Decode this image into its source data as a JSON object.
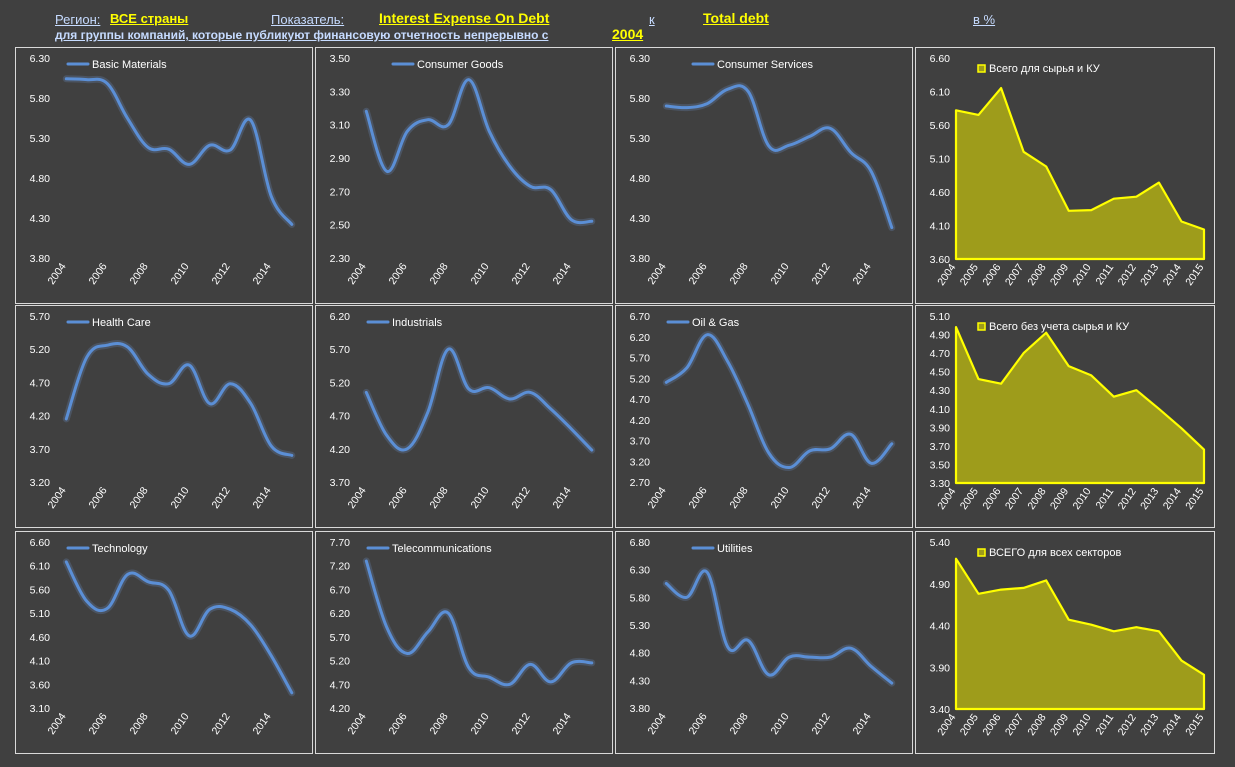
{
  "header": {
    "region_label": "Регион:",
    "region_value": "ВСЕ страны",
    "indicator_label": "Показатель:",
    "indicator_value": "Interest Expense On Debt",
    "to_label": "к",
    "denominator_value": "Total debt",
    "unit_label": "в %",
    "subtitle": "для группы компаний, которые публикуют финансовую отчетность непрерывно с",
    "start_year": "2004"
  },
  "colors": {
    "background": "#404040",
    "sector_line": "#5b8fd6",
    "total_line": "#ffff00",
    "total_fill": "#9e9c1b",
    "panel_border": "#d9d9d9",
    "axis_text": "#ffffff"
  },
  "chart_data": [
    {
      "type": "line",
      "series": [
        {
          "name": "Basic Materials",
          "values": [
            6.04,
            6.03,
            5.98,
            5.54,
            5.18,
            5.16,
            4.97,
            5.21,
            5.15,
            5.52,
            4.57,
            4.22
          ]
        }
      ],
      "x": [
        2004,
        2005,
        2006,
        2007,
        2008,
        2009,
        2010,
        2011,
        2012,
        2013,
        2014,
        2015
      ],
      "x_ticks": [
        "2004",
        "2006",
        "2008",
        "2010",
        "2012",
        "2014"
      ],
      "y_ticks": [
        "6.30",
        "5.80",
        "5.30",
        "4.80",
        "4.30",
        "3.80"
      ],
      "ylim": [
        3.8,
        6.3
      ],
      "legend": "top-left"
    },
    {
      "type": "line",
      "series": [
        {
          "name": "Consumer Goods",
          "values": [
            3.18,
            2.82,
            3.06,
            3.13,
            3.1,
            3.37,
            3.06,
            2.85,
            2.73,
            2.71,
            2.53,
            2.52
          ]
        }
      ],
      "x": [
        2004,
        2005,
        2006,
        2007,
        2008,
        2009,
        2010,
        2011,
        2012,
        2013,
        2014,
        2015
      ],
      "x_ticks": [
        "2004",
        "2006",
        "2008",
        "2010",
        "2012",
        "2014"
      ],
      "y_ticks": [
        "3.50",
        "3.30",
        "3.10",
        "2.90",
        "2.70",
        "2.50",
        "2.30"
      ],
      "ylim": [
        2.3,
        3.5
      ],
      "legend": "top-center"
    },
    {
      "type": "line",
      "series": [
        {
          "name": "Consumer Services",
          "values": [
            5.7,
            5.68,
            5.73,
            5.91,
            5.88,
            5.2,
            5.21,
            5.32,
            5.42,
            5.12,
            4.88,
            4.18
          ]
        }
      ],
      "x": [
        2004,
        2005,
        2006,
        2007,
        2008,
        2009,
        2010,
        2011,
        2012,
        2013,
        2014,
        2015
      ],
      "x_ticks": [
        "2004",
        "2006",
        "2008",
        "2010",
        "2012",
        "2014"
      ],
      "y_ticks": [
        "6.30",
        "5.80",
        "5.30",
        "4.80",
        "4.30",
        "3.80"
      ],
      "ylim": [
        3.8,
        6.3
      ],
      "legend": "top-center"
    },
    {
      "type": "area",
      "series": [
        {
          "name": "Всего для сырья и КУ",
          "values": [
            5.82,
            5.75,
            6.15,
            5.2,
            4.98,
            4.32,
            4.33,
            4.5,
            4.53,
            4.74,
            4.16,
            4.04
          ]
        }
      ],
      "x_ticks": [
        "2004",
        "2005",
        "2006",
        "2007",
        "2008",
        "2009",
        "2010",
        "2011",
        "2012",
        "2013",
        "2014",
        "2015"
      ],
      "y_ticks": [
        "6.60",
        "6.10",
        "5.60",
        "5.10",
        "4.60",
        "4.10",
        "3.60"
      ],
      "ylim": [
        3.6,
        6.6
      ],
      "legend": "top-left"
    },
    {
      "type": "line",
      "series": [
        {
          "name": "Health Care",
          "values": [
            4.15,
            5.08,
            5.26,
            5.23,
            4.82,
            4.68,
            4.96,
            4.38,
            4.68,
            4.38,
            3.74,
            3.6
          ]
        }
      ],
      "x": [
        2004,
        2005,
        2006,
        2007,
        2008,
        2009,
        2010,
        2011,
        2012,
        2013,
        2014,
        2015
      ],
      "x_ticks": [
        "2004",
        "2006",
        "2008",
        "2010",
        "2012",
        "2014"
      ],
      "y_ticks": [
        "5.70",
        "5.20",
        "4.70",
        "4.20",
        "3.70",
        "3.20"
      ],
      "ylim": [
        3.2,
        5.7
      ],
      "legend": "top-left"
    },
    {
      "type": "line",
      "series": [
        {
          "name": "Industrials",
          "values": [
            5.05,
            4.4,
            4.2,
            4.75,
            5.7,
            5.1,
            5.12,
            4.95,
            5.05,
            4.8,
            4.5,
            4.18
          ]
        }
      ],
      "x": [
        2004,
        2005,
        2006,
        2007,
        2008,
        2009,
        2010,
        2011,
        2012,
        2013,
        2014,
        2015
      ],
      "x_ticks": [
        "2004",
        "2006",
        "2008",
        "2010",
        "2012",
        "2014"
      ],
      "y_ticks": [
        "6.20",
        "5.70",
        "5.20",
        "4.70",
        "4.20",
        "3.70"
      ],
      "ylim": [
        3.7,
        6.2
      ],
      "legend": "top-left"
    },
    {
      "type": "line",
      "series": [
        {
          "name": "Oil & Gas",
          "values": [
            5.1,
            5.45,
            6.25,
            5.6,
            4.55,
            3.4,
            3.05,
            3.45,
            3.5,
            3.85,
            3.15,
            3.62
          ]
        }
      ],
      "x": [
        2004,
        2005,
        2006,
        2007,
        2008,
        2009,
        2010,
        2011,
        2012,
        2013,
        2014,
        2015
      ],
      "x_ticks": [
        "2004",
        "2006",
        "2008",
        "2010",
        "2012",
        "2014"
      ],
      "y_ticks": [
        "6.70",
        "6.20",
        "5.70",
        "5.20",
        "4.70",
        "4.20",
        "3.70",
        "3.20",
        "2.70"
      ],
      "ylim": [
        2.7,
        6.7
      ],
      "legend": "top-left"
    },
    {
      "type": "area",
      "series": [
        {
          "name": "Всего без учета сырья и КУ",
          "values": [
            4.98,
            4.42,
            4.37,
            4.7,
            4.92,
            4.56,
            4.46,
            4.23,
            4.3,
            4.1,
            3.89,
            3.66
          ]
        }
      ],
      "x_ticks": [
        "2004",
        "2005",
        "2006",
        "2007",
        "2008",
        "2009",
        "2010",
        "2011",
        "2012",
        "2013",
        "2014",
        "2015"
      ],
      "y_ticks": [
        "5.10",
        "4.90",
        "4.70",
        "4.50",
        "4.30",
        "4.10",
        "3.90",
        "3.70",
        "3.50",
        "3.30"
      ],
      "ylim": [
        3.3,
        5.1
      ],
      "legend": "top-left"
    },
    {
      "type": "line",
      "series": [
        {
          "name": "Technology",
          "values": [
            6.18,
            5.35,
            5.2,
            5.92,
            5.76,
            5.58,
            4.62,
            5.18,
            5.18,
            4.85,
            4.2,
            3.42
          ]
        }
      ],
      "x": [
        2004,
        2005,
        2006,
        2007,
        2008,
        2009,
        2010,
        2011,
        2012,
        2013,
        2014,
        2015
      ],
      "x_ticks": [
        "2004",
        "2006",
        "2008",
        "2010",
        "2012",
        "2014"
      ],
      "y_ticks": [
        "6.60",
        "6.10",
        "5.60",
        "5.10",
        "4.60",
        "4.10",
        "3.60",
        "3.10"
      ],
      "ylim": [
        3.1,
        6.6
      ],
      "legend": "top-left"
    },
    {
      "type": "line",
      "series": [
        {
          "name": "Telecommunications",
          "values": [
            7.3,
            5.9,
            5.35,
            5.8,
            6.2,
            5.05,
            4.85,
            4.7,
            5.12,
            4.75,
            5.15,
            5.15
          ]
        }
      ],
      "x": [
        2004,
        2005,
        2006,
        2007,
        2008,
        2009,
        2010,
        2011,
        2012,
        2013,
        2014,
        2015
      ],
      "x_ticks": [
        "2004",
        "2006",
        "2008",
        "2010",
        "2012",
        "2014"
      ],
      "y_ticks": [
        "7.70",
        "7.20",
        "6.70",
        "6.20",
        "5.70",
        "5.20",
        "4.70",
        "4.20"
      ],
      "ylim": [
        4.2,
        7.7
      ],
      "legend": "top-left"
    },
    {
      "type": "line",
      "series": [
        {
          "name": "Utilities",
          "values": [
            6.05,
            5.8,
            6.25,
            4.9,
            5.02,
            4.4,
            4.72,
            4.72,
            4.72,
            4.88,
            4.55,
            4.25
          ]
        }
      ],
      "x": [
        2004,
        2005,
        2006,
        2007,
        2008,
        2009,
        2010,
        2011,
        2012,
        2013,
        2014,
        2015
      ],
      "x_ticks": [
        "2004",
        "2006",
        "2008",
        "2010",
        "2012",
        "2014"
      ],
      "y_ticks": [
        "6.80",
        "6.30",
        "5.80",
        "5.30",
        "4.80",
        "4.30",
        "3.80"
      ],
      "ylim": [
        3.8,
        6.8
      ],
      "legend": "top-center"
    },
    {
      "type": "area",
      "series": [
        {
          "name": "ВСЕГО для всех секторов",
          "values": [
            5.2,
            4.78,
            4.83,
            4.85,
            4.94,
            4.47,
            4.41,
            4.33,
            4.38,
            4.33,
            3.98,
            3.81
          ]
        }
      ],
      "x_ticks": [
        "2004",
        "2005",
        "2006",
        "2007",
        "2008",
        "2009",
        "2010",
        "2011",
        "2012",
        "2013",
        "2014",
        "2015"
      ],
      "y_ticks": [
        "5.40",
        "4.90",
        "4.40",
        "3.90",
        "3.40"
      ],
      "ylim": [
        3.4,
        5.4
      ],
      "legend": "top-left"
    }
  ]
}
